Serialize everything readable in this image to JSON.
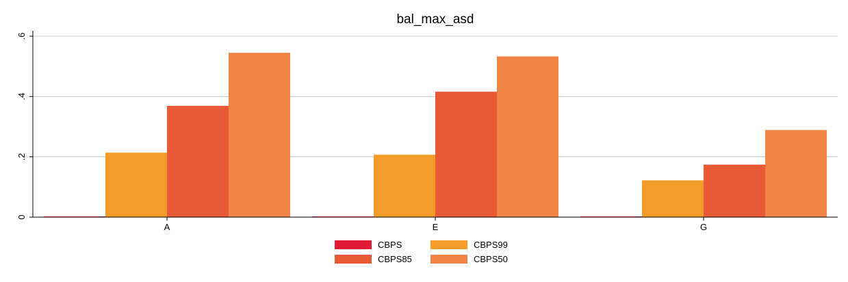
{
  "chart_data": {
    "type": "bar",
    "title": "bal_max_asd",
    "xlabel": "",
    "ylabel": "",
    "categories": [
      "A",
      "E",
      "G"
    ],
    "series": [
      {
        "name": "CBPS",
        "color": "#e31a35",
        "values": [
          0.001,
          0.001,
          0.001
        ]
      },
      {
        "name": "CBPS99",
        "color": "#f39c2b",
        "values": [
          0.214,
          0.207,
          0.122
        ]
      },
      {
        "name": "CBPS85",
        "color": "#e95935",
        "values": [
          0.369,
          0.416,
          0.174
        ]
      },
      {
        "name": "CBPS50",
        "color": "#ef8444",
        "values": [
          0.545,
          0.533,
          0.289
        ]
      }
    ],
    "ylim": [
      0,
      0.6
    ],
    "yticks": [
      0,
      0.2,
      0.4,
      0.6
    ],
    "ytick_labels": [
      "0",
      ".2",
      ".4",
      ".6"
    ],
    "grid": true,
    "legend": {
      "position": "bottom",
      "rows": [
        [
          "CBPS",
          "CBPS99"
        ],
        [
          "CBPS85",
          "CBPS50"
        ]
      ]
    }
  }
}
